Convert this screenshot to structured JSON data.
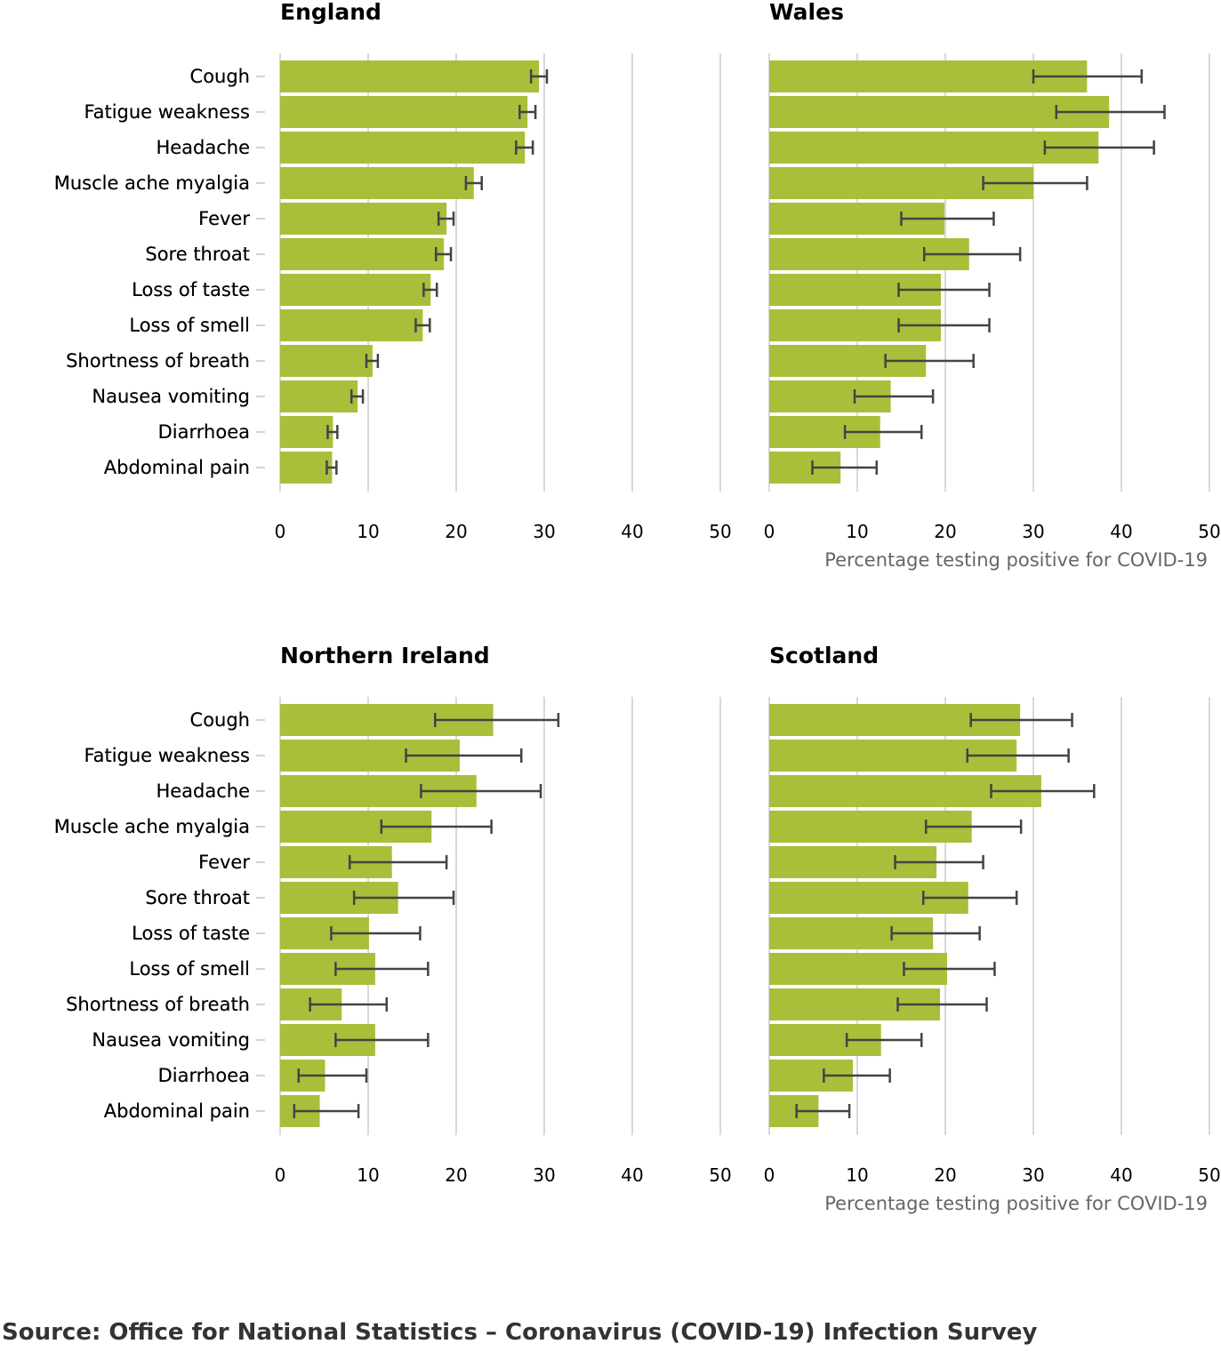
{
  "source_text": "Source: Office for National Statistics – Coronavirus (COVID-19) Infection Survey",
  "colors": {
    "bar": "#a8bf3a",
    "error_bar": "#444444",
    "grid": "#cccccc",
    "axis_title": "#666666"
  },
  "chart_data": [
    {
      "type": "bar",
      "orientation": "horizontal",
      "title": "England",
      "xlabel": "",
      "categories": [
        "Cough",
        "Fatigue weakness",
        "Headache",
        "Muscle ache myalgia",
        "Fever",
        "Sore throat",
        "Loss of taste",
        "Loss of smell",
        "Shortness of breath",
        "Nausea vomiting",
        "Diarrhoea",
        "Abdominal pain"
      ],
      "values": [
        29.4,
        28.1,
        27.8,
        22.0,
        18.9,
        18.6,
        17.1,
        16.2,
        10.5,
        8.8,
        6.0,
        5.9
      ],
      "error_low": [
        28.5,
        27.2,
        26.8,
        21.1,
        18.0,
        17.7,
        16.3,
        15.4,
        9.8,
        8.1,
        5.4,
        5.3
      ],
      "error_high": [
        30.3,
        29.0,
        28.7,
        22.9,
        19.7,
        19.4,
        17.8,
        17.0,
        11.1,
        9.4,
        6.5,
        6.4
      ],
      "xlim": [
        0,
        50
      ],
      "xticks": [
        "0",
        "10",
        "20",
        "30",
        "40",
        "50"
      ]
    },
    {
      "type": "bar",
      "orientation": "horizontal",
      "title": "Wales",
      "xlabel": "Percentage testing positive for COVID-19",
      "categories": [
        "Cough",
        "Fatigue weakness",
        "Headache",
        "Muscle ache myalgia",
        "Fever",
        "Sore throat",
        "Loss of taste",
        "Loss of smell",
        "Shortness of breath",
        "Nausea vomiting",
        "Diarrhoea",
        "Abdominal pain"
      ],
      "values": [
        36.1,
        38.6,
        37.4,
        30.0,
        19.9,
        22.7,
        19.5,
        19.5,
        17.8,
        13.8,
        12.6,
        8.1
      ],
      "error_low": [
        30.0,
        32.6,
        31.3,
        24.3,
        15.0,
        17.6,
        14.7,
        14.7,
        13.2,
        9.7,
        8.6,
        4.9
      ],
      "error_high": [
        42.3,
        44.9,
        43.7,
        36.1,
        25.5,
        28.5,
        25.0,
        25.0,
        23.2,
        18.6,
        17.3,
        12.2
      ],
      "xlim": [
        0,
        50
      ],
      "xticks": [
        "0",
        "10",
        "20",
        "30",
        "40",
        "50"
      ]
    },
    {
      "type": "bar",
      "orientation": "horizontal",
      "title": "Northern Ireland",
      "xlabel": "",
      "categories": [
        "Cough",
        "Fatigue weakness",
        "Headache",
        "Muscle ache myalgia",
        "Fever",
        "Sore throat",
        "Loss of taste",
        "Loss of smell",
        "Shortness of breath",
        "Nausea vomiting",
        "Diarrhoea",
        "Abdominal pain"
      ],
      "values": [
        24.2,
        20.4,
        22.3,
        17.2,
        12.7,
        13.4,
        10.1,
        10.8,
        7.0,
        10.8,
        5.1,
        4.5
      ],
      "error_low": [
        17.6,
        14.3,
        16.0,
        11.5,
        7.9,
        8.4,
        5.8,
        6.3,
        3.4,
        6.3,
        2.1,
        1.6
      ],
      "error_high": [
        31.6,
        27.4,
        29.6,
        24.0,
        18.9,
        19.7,
        15.9,
        16.8,
        12.1,
        16.8,
        9.8,
        8.9
      ],
      "xlim": [
        0,
        50
      ],
      "xticks": [
        "0",
        "10",
        "20",
        "30",
        "40",
        "50"
      ]
    },
    {
      "type": "bar",
      "orientation": "horizontal",
      "title": "Scotland",
      "xlabel": "Percentage testing positive for COVID-19",
      "categories": [
        "Cough",
        "Fatigue weakness",
        "Headache",
        "Muscle ache myalgia",
        "Fever",
        "Sore throat",
        "Loss of taste",
        "Loss of smell",
        "Shortness of breath",
        "Nausea vomiting",
        "Diarrhoea",
        "Abdominal pain"
      ],
      "values": [
        28.5,
        28.1,
        30.9,
        23.0,
        19.0,
        22.6,
        18.6,
        20.2,
        19.4,
        12.7,
        9.5,
        5.6
      ],
      "error_low": [
        22.9,
        22.5,
        25.2,
        17.8,
        14.3,
        17.5,
        13.9,
        15.3,
        14.6,
        8.8,
        6.2,
        3.1
      ],
      "error_high": [
        34.4,
        34.0,
        36.9,
        28.6,
        24.3,
        28.1,
        23.9,
        25.6,
        24.7,
        17.3,
        13.7,
        9.1
      ],
      "xlim": [
        0,
        50
      ],
      "xticks": [
        "0",
        "10",
        "20",
        "30",
        "40",
        "50"
      ]
    }
  ]
}
